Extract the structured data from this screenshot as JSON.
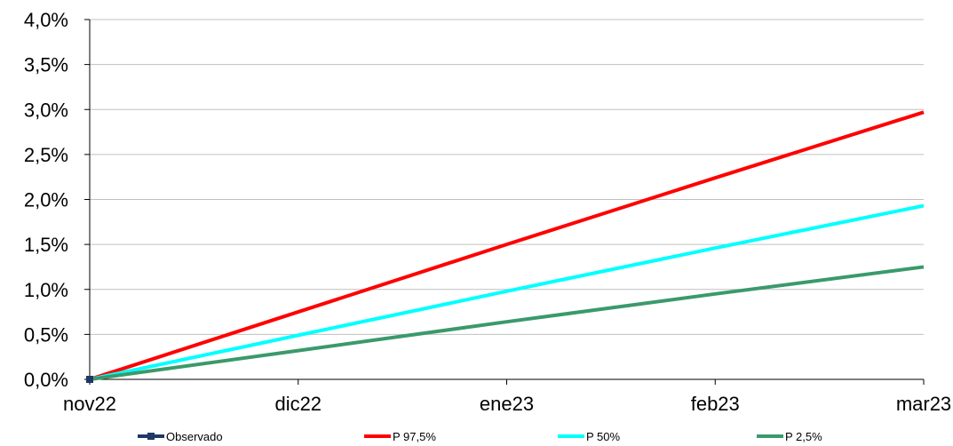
{
  "chart_data": {
    "type": "line",
    "categories": [
      "nov22",
      "dic22",
      "ene23",
      "feb23",
      "mar23"
    ],
    "y_tick_labels": [
      "0,0%",
      "0,5%",
      "1,0%",
      "1,5%",
      "2,0%",
      "2,5%",
      "3,0%",
      "3,5%",
      "4,0%"
    ],
    "ylim": [
      0,
      4.0
    ],
    "y_unit": "%",
    "grid": "horizontal",
    "legend_position": "bottom",
    "series": [
      {
        "name": "Observado",
        "color": "#1f3864",
        "values": [
          0.0,
          null,
          null,
          null,
          null
        ],
        "marker": "square"
      },
      {
        "name": "P 97,5%",
        "color": "#ff0000",
        "values": [
          0.0,
          0.75,
          1.5,
          2.24,
          2.97
        ]
      },
      {
        "name": "P 50%",
        "color": "#00ffff",
        "values": [
          0.0,
          0.49,
          0.98,
          1.46,
          1.93
        ]
      },
      {
        "name": "P 2,5%",
        "color": "#3a9a6a",
        "values": [
          0.0,
          0.32,
          0.64,
          0.95,
          1.25
        ]
      }
    ]
  }
}
